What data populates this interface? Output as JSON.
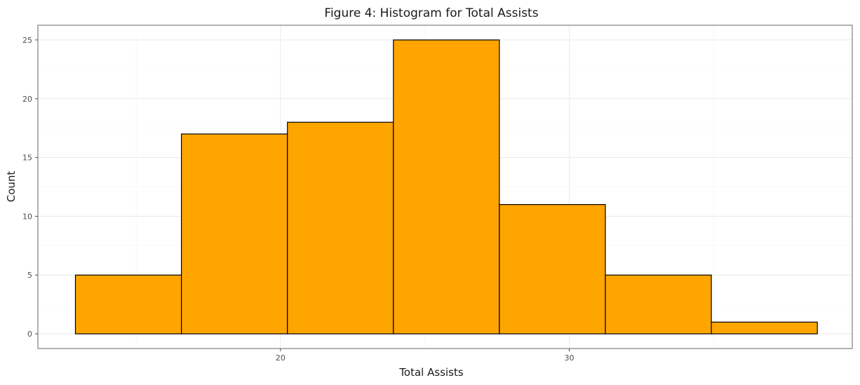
{
  "chart_data": {
    "type": "bar",
    "title": "Figure 4: Histogram for Total Assists",
    "xlabel": "Total Assists",
    "ylabel": "Count",
    "bins": [
      {
        "start": 12.9,
        "end": 16.57,
        "count": 5
      },
      {
        "start": 16.57,
        "end": 20.24,
        "count": 17
      },
      {
        "start": 20.24,
        "end": 23.91,
        "count": 18
      },
      {
        "start": 23.91,
        "end": 27.58,
        "count": 25
      },
      {
        "start": 27.58,
        "end": 31.25,
        "count": 11
      },
      {
        "start": 31.25,
        "end": 34.92,
        "count": 5
      },
      {
        "start": 34.92,
        "end": 38.59,
        "count": 1
      }
    ],
    "xlim": [
      11.6,
      39.8
    ],
    "ylim": [
      -1.25,
      26.25
    ],
    "x_ticks": [
      20,
      30
    ],
    "x_tick_labels": [
      "20",
      "30"
    ],
    "y_ticks": [
      0,
      5,
      10,
      15,
      20,
      25
    ],
    "y_tick_labels": [
      "0",
      "5",
      "10",
      "15",
      "20",
      "25"
    ],
    "bar_color": "#FFA500",
    "bar_edge_color": "#000000",
    "grid": true,
    "legend": "none"
  }
}
